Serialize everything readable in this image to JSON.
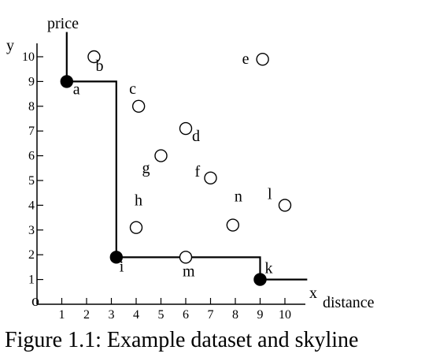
{
  "chart_data": {
    "type": "scatter",
    "caption": "Figure 1.1: Example dataset and skyline",
    "x_axis": {
      "symbol": "x",
      "name": "distance",
      "ticks": [
        1,
        2,
        3,
        4,
        5,
        6,
        7,
        8,
        9,
        10
      ],
      "range": [
        0,
        11
      ]
    },
    "y_axis": {
      "symbol": "y",
      "name": "price",
      "ticks": [
        1,
        2,
        3,
        4,
        5,
        6,
        7,
        8,
        9,
        10
      ],
      "range": [
        0,
        11
      ]
    },
    "origin_label": "o",
    "points": [
      {
        "label": "a",
        "x": 1.2,
        "y": 9,
        "skyline": true
      },
      {
        "label": "b",
        "x": 2.3,
        "y": 10,
        "skyline": false
      },
      {
        "label": "c",
        "x": 4.1,
        "y": 8,
        "skyline": false
      },
      {
        "label": "d",
        "x": 6.0,
        "y": 7.1,
        "skyline": false
      },
      {
        "label": "e",
        "x": 9.1,
        "y": 9.9,
        "skyline": false
      },
      {
        "label": "f",
        "x": 7.0,
        "y": 5.1,
        "skyline": false
      },
      {
        "label": "g",
        "x": 5.0,
        "y": 6.0,
        "skyline": false
      },
      {
        "label": "h",
        "x": 4.0,
        "y": 3.1,
        "skyline": false
      },
      {
        "label": "i",
        "x": 3.2,
        "y": 1.9,
        "skyline": true
      },
      {
        "label": "k",
        "x": 9.0,
        "y": 1.0,
        "skyline": true
      },
      {
        "label": "l",
        "x": 10.0,
        "y": 4.0,
        "skyline": false
      },
      {
        "label": "m",
        "x": 6.0,
        "y": 1.9,
        "skyline": false
      },
      {
        "label": "n",
        "x": 7.9,
        "y": 3.2,
        "skyline": false
      }
    ],
    "skyline_path": [
      [
        1.2,
        11
      ],
      [
        1.2,
        9
      ],
      [
        3.2,
        9
      ],
      [
        3.2,
        1.9
      ],
      [
        9.0,
        1.9
      ],
      [
        9.0,
        1.0
      ],
      [
        10.9,
        1.0
      ]
    ],
    "grid": false,
    "legend": "none"
  }
}
